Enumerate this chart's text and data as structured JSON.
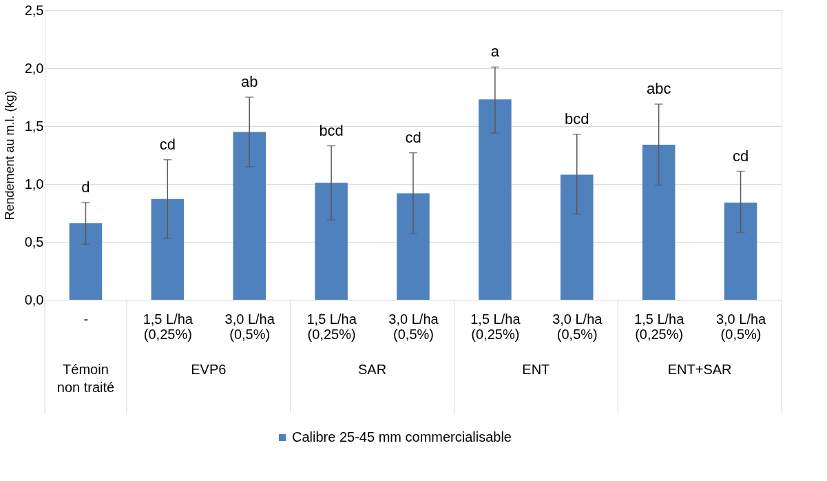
{
  "chart_data": {
    "type": "bar",
    "ylabel": "Rendement au m.l. (kg)",
    "categories": [
      "-",
      "1,5 L/ha (0,25%)",
      "3,0 L/ha (0,5%)",
      "1,5 L/ha (0,25%)",
      "3,0 L/ha (0,5%)",
      "1,5 L/ha (0,25%)",
      "3,0 L/ha (0,5%)",
      "1,5 L/ha (0,25%)",
      "3,0 L/ha (0,5%)"
    ],
    "series": [
      {
        "name": "Calibre 25-45 mm commercialisable",
        "color": "#4f81bd",
        "values": [
          0.66,
          0.87,
          1.45,
          1.01,
          0.92,
          1.73,
          1.08,
          1.34,
          0.84
        ],
        "errors": [
          [
            0.48,
            0.84
          ],
          [
            0.53,
            1.21
          ],
          [
            1.15,
            1.75
          ],
          [
            0.69,
            1.33
          ],
          [
            0.57,
            1.27
          ],
          [
            1.44,
            2.01
          ],
          [
            0.74,
            1.43
          ],
          [
            0.99,
            1.69
          ],
          [
            0.58,
            1.11
          ]
        ]
      }
    ],
    "annotations": [
      "d",
      "cd",
      "ab",
      "bcd",
      "cd",
      "a",
      "bcd",
      "abc",
      "cd",
      "Témoin non traité",
      "EVP6",
      "SAR",
      "ENT",
      "ENT+SAR"
    ],
    "ylim": [
      0,
      2.5
    ],
    "yticks": [
      {
        "value": 0,
        "label": "0,0"
      },
      {
        "value": 0.5,
        "label": "0,5"
      },
      {
        "value": 1,
        "label": "1,0"
      },
      {
        "value": 1.5,
        "label": "1,5"
      },
      {
        "value": 2,
        "label": "2,0"
      },
      {
        "value": 2.5,
        "label": "2,5"
      }
    ],
    "grid": "y",
    "legend": "bottom"
  }
}
